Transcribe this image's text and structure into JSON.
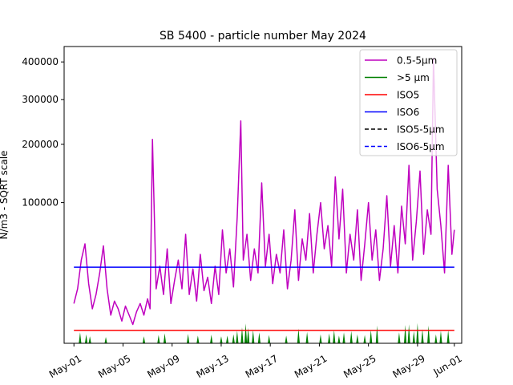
{
  "chart_data": {
    "type": "line",
    "title": "SB 5400 - particle number May 2024",
    "xlabel": "",
    "ylabel": "N/m3 - SQRT scale",
    "y_scale": "sqrt",
    "xlim": [
      -0.8,
      31.6
    ],
    "ylim": [
      0,
      445000
    ],
    "x_ticks": [
      {
        "day": 0,
        "label": "May-01"
      },
      {
        "day": 4,
        "label": "May-05"
      },
      {
        "day": 8,
        "label": "May-09"
      },
      {
        "day": 12,
        "label": "May-13"
      },
      {
        "day": 16,
        "label": "May-17"
      },
      {
        "day": 20,
        "label": "May-21"
      },
      {
        "day": 24,
        "label": "May-25"
      },
      {
        "day": 28,
        "label": "May-29"
      },
      {
        "day": 31,
        "label": "Jun-01"
      }
    ],
    "y_ticks": [
      100000,
      200000,
      300000,
      400000
    ],
    "legend_position": "top-right",
    "series": [
      {
        "name": "0.5-5µm",
        "color": "#bf00bf",
        "style": "solid",
        "x": [
          0,
          0.3,
          0.6,
          0.9,
          1.2,
          1.5,
          1.8,
          2.1,
          2.4,
          2.7,
          3.0,
          3.3,
          3.6,
          3.9,
          4.2,
          4.5,
          4.8,
          5.1,
          5.4,
          5.7,
          6.0,
          6.2,
          6.4,
          6.7,
          7.0,
          7.3,
          7.6,
          7.9,
          8.2,
          8.5,
          8.8,
          9.1,
          9.4,
          9.7,
          10.0,
          10.3,
          10.6,
          10.9,
          11.2,
          11.5,
          11.8,
          12.1,
          12.4,
          12.7,
          13.0,
          13.3,
          13.6,
          13.8,
          14.1,
          14.4,
          14.7,
          15.0,
          15.3,
          15.6,
          15.9,
          16.2,
          16.5,
          16.8,
          17.1,
          17.4,
          17.7,
          18.0,
          18.3,
          18.6,
          18.9,
          19.2,
          19.5,
          19.8,
          20.1,
          20.4,
          20.7,
          21.0,
          21.3,
          21.6,
          21.9,
          22.2,
          22.5,
          22.8,
          23.1,
          23.4,
          23.7,
          24.0,
          24.3,
          24.6,
          24.9,
          25.2,
          25.5,
          25.8,
          26.1,
          26.4,
          26.7,
          27.0,
          27.3,
          27.6,
          27.9,
          28.2,
          28.5,
          28.8,
          29.1,
          29.3,
          29.6,
          29.9,
          30.2,
          30.5,
          30.8,
          31.0
        ],
        "values": [
          8000,
          15000,
          35000,
          50000,
          18000,
          6000,
          12000,
          25000,
          48000,
          15000,
          4000,
          9000,
          6000,
          2500,
          7000,
          4000,
          1800,
          5000,
          8000,
          4000,
          10000,
          6000,
          210000,
          15000,
          30000,
          12000,
          45000,
          8000,
          20000,
          35000,
          15000,
          60000,
          12000,
          28000,
          9000,
          40000,
          14000,
          22000,
          8000,
          30000,
          12000,
          65000,
          25000,
          45000,
          16000,
          80000,
          250000,
          35000,
          60000,
          20000,
          45000,
          25000,
          130000,
          30000,
          60000,
          18000,
          40000,
          25000,
          65000,
          15000,
          35000,
          90000,
          20000,
          55000,
          35000,
          85000,
          25000,
          60000,
          100000,
          45000,
          70000,
          30000,
          140000,
          55000,
          120000,
          25000,
          60000,
          35000,
          90000,
          20000,
          50000,
          100000,
          35000,
          65000,
          20000,
          45000,
          110000,
          30000,
          70000,
          25000,
          95000,
          50000,
          160000,
          35000,
          75000,
          150000,
          40000,
          90000,
          60000,
          410000,
          120000,
          70000,
          25000,
          160000,
          40000,
          65000
        ]
      },
      {
        "name": ">5 µm",
        "color": "#008000",
        "style": "solid",
        "x": [
          0.5,
          1.0,
          1.3,
          2.6,
          5.7,
          6.9,
          7.4,
          9.3,
          10.1,
          11.2,
          12.0,
          12.5,
          13.0,
          13.3,
          13.7,
          14.0,
          14.2,
          14.6,
          15.1,
          15.9,
          17.3,
          18.3,
          19.0,
          20.1,
          20.8,
          21.2,
          21.6,
          22.0,
          22.6,
          23.1,
          23.7,
          24.2,
          24.7,
          26.5,
          27.0,
          27.3,
          27.7,
          28.0,
          28.4,
          28.9,
          29.5,
          29.9,
          30.5
        ],
        "values": [
          600,
          400,
          250,
          200,
          250,
          350,
          500,
          450,
          300,
          380,
          250,
          300,
          400,
          800,
          1300,
          2000,
          1200,
          900,
          600,
          350,
          300,
          1100,
          650,
          400,
          500,
          900,
          300,
          600,
          750,
          400,
          350,
          900,
          1600,
          600,
          1700,
          1800,
          750,
          2100,
          1000,
          1600,
          400,
          800,
          900
        ]
      },
      {
        "name": "ISO5",
        "color": "#ff0000",
        "style": "solid",
        "x": [
          0,
          31
        ],
        "values": [
          832,
          832
        ]
      },
      {
        "name": "ISO6",
        "color": "#0000ff",
        "style": "solid",
        "x": [
          0,
          31
        ],
        "values": [
          29300,
          29300
        ]
      },
      {
        "name": "ISO5-5µm",
        "color": "#000000",
        "style": "dashed",
        "x": [
          0,
          31
        ],
        "values": [
          0,
          0
        ]
      },
      {
        "name": "ISO6-5µm",
        "color": "#0000ff",
        "style": "dashed",
        "x": [
          0,
          31
        ],
        "values": [
          293,
          293
        ]
      }
    ]
  }
}
